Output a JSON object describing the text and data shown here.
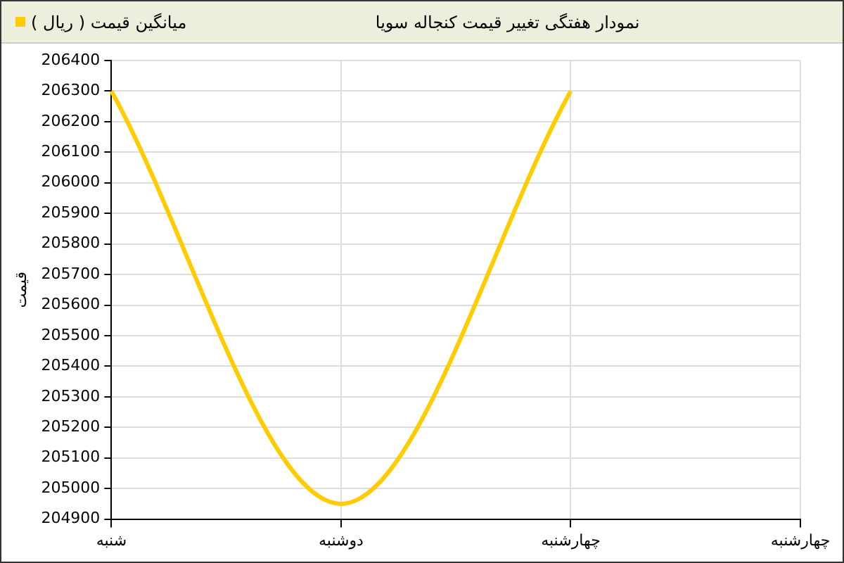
{
  "chart_data": {
    "type": "line",
    "title": "نمودار هفتگی تغییر قیمت کنجاله سویا",
    "ylabel": "قیمت",
    "categories": [
      "شنبه",
      "دوشنبه",
      "چهارشنبه",
      "چهارشنبه"
    ],
    "series": [
      {
        "name": "میانگین قیمت ( ریال )",
        "color": "#ffcc00",
        "values": [
          206300,
          204950,
          206300,
          null
        ]
      }
    ],
    "ylim": [
      204900,
      206400
    ],
    "yticks": [
      204900,
      205000,
      205100,
      205200,
      205300,
      205400,
      205500,
      205600,
      205700,
      205800,
      205900,
      206000,
      206100,
      206200,
      206300,
      206400
    ],
    "grid": true,
    "legend": "top left",
    "marker": "none",
    "line_style": "solid"
  }
}
